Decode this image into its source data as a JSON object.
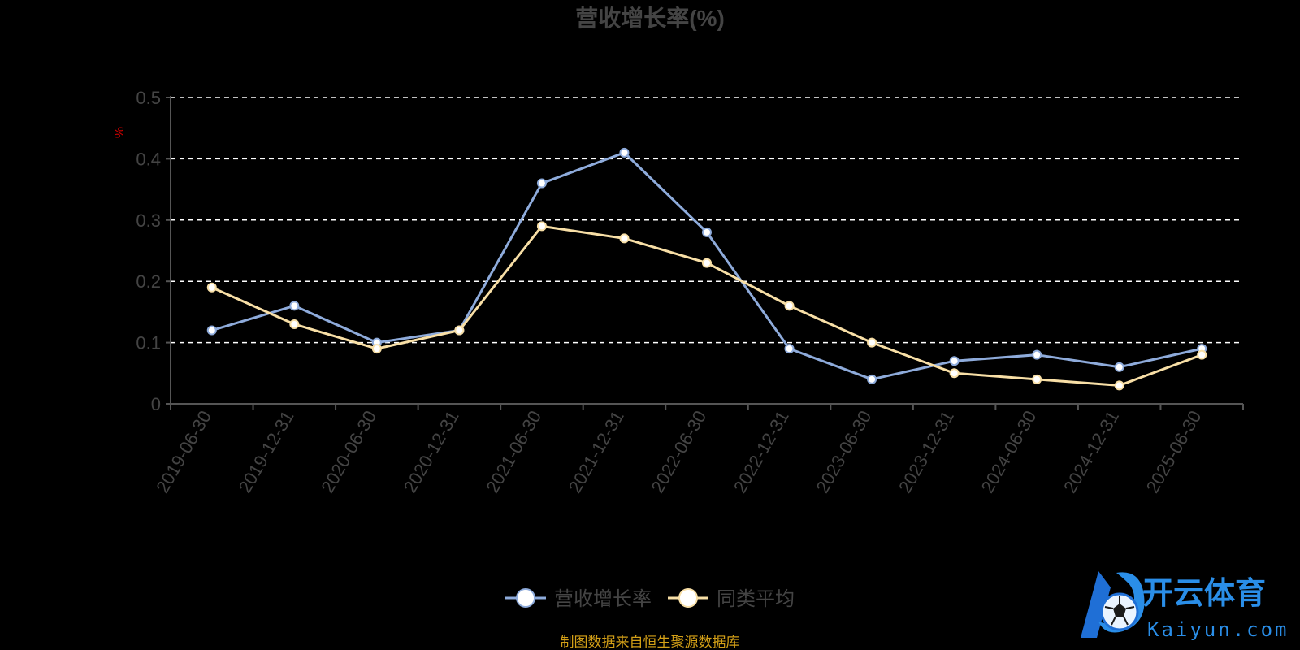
{
  "chart_data": {
    "type": "line",
    "title": "营收增长率(%)",
    "ylabel": "%",
    "ylim": [
      0,
      0.5
    ],
    "yticks": [
      "0",
      "0.1",
      "0.2",
      "0.3",
      "0.4",
      "0.5"
    ],
    "categories": [
      "2019-06-30",
      "2019-12-31",
      "2020-06-30",
      "2020-12-31",
      "2021-06-30",
      "2021-12-31",
      "2022-06-30",
      "2022-12-31",
      "2023-06-30",
      "2023-12-31",
      "2024-06-30",
      "2024-12-31",
      "2025-06-30"
    ],
    "series": [
      {
        "name": "营收增长率",
        "color": "#8eabdb",
        "values": [
          0.12,
          0.16,
          0.1,
          0.12,
          0.36,
          0.41,
          0.28,
          0.09,
          0.04,
          0.07,
          0.08,
          0.06,
          0.09
        ]
      },
      {
        "name": "同类平均",
        "color": "#f8dfa6",
        "values": [
          0.19,
          0.13,
          0.09,
          0.12,
          0.29,
          0.27,
          0.23,
          0.16,
          0.1,
          0.05,
          0.04,
          0.03,
          0.08
        ]
      }
    ],
    "grid": true,
    "legend": "bottom"
  },
  "source_note": "制图数据来自恒生聚源数据库",
  "watermark": {
    "text": "开云体育",
    "subtext": "Kaiyun.com"
  },
  "colors": {
    "background": "#000000",
    "axis": "#555555",
    "axis_text": "#444444",
    "grid": "#ffffff",
    "ylabel": "#cc0000",
    "note": "#d4a017",
    "logo": "#2a8ee8"
  }
}
